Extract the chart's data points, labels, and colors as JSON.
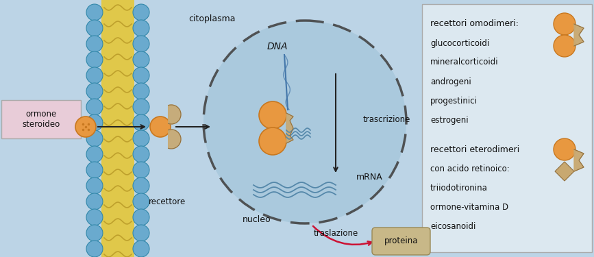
{
  "bg_color": "#bcd4e6",
  "fig_width": 8.67,
  "fig_height": 3.75,
  "membrane_yellow": "#e0c84a",
  "membrane_blue": "#6aaace",
  "orange": "#e89840",
  "orange_dark": "#c87820",
  "tan": "#c8a870",
  "tan_dark": "#907040",
  "nucleus_fill": "#a8c8dc",
  "nucleus_edge": "#444444",
  "legend_fill": "#dce8f0",
  "legend_edge": "#aaaaaa",
  "proteina_fill": "#c8b888",
  "arrow_dark": "#222222",
  "pink": "#cc1133",
  "dna_blue": "#4477aa",
  "wave_blue": "#5588aa",
  "text_col": "#111111",
  "label_box_fill": "#e8ccd8",
  "label_box_edge": "#aaaaaa",
  "labels": {
    "ormone": "ormone\nsteroideo",
    "recettore": "recettore",
    "citoplasma": "citoplasma",
    "nucleo": "nucleo",
    "DNA": "DNA",
    "trascrizione": "trascrizione",
    "mRNA": "mRNA",
    "traslazione": "traslazione",
    "proteina": "proteina"
  },
  "legend_lines1": [
    "recettori omodimeri:",
    "glucocorticoidi",
    "mineralcorticoidi",
    "androgeni",
    "progestinici",
    "estrogeni"
  ],
  "legend_lines2": [
    "recettori eterodimeri",
    "con acido retinoico:",
    "triiodotironina",
    "ormone-vitamina D",
    "eicosanoidi"
  ]
}
